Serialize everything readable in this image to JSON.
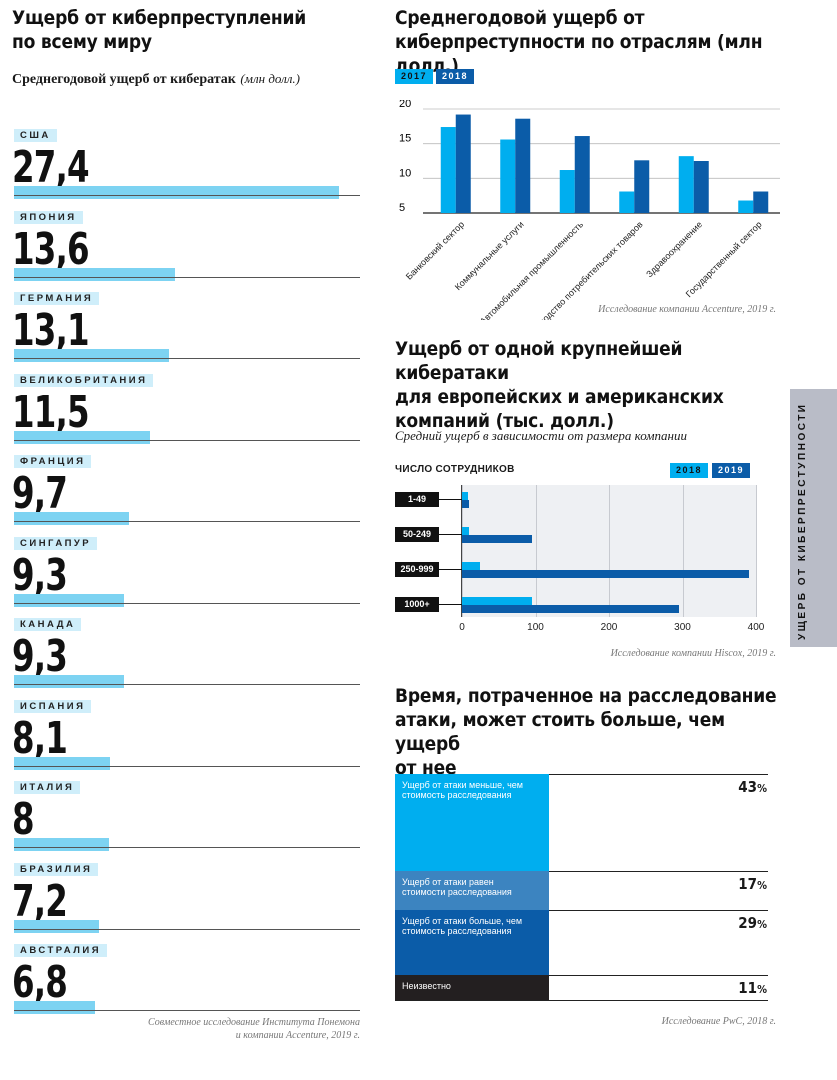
{
  "left_panel": {
    "title_line1": "Ущерб от киберпреступлений",
    "title_line2": "по всему миру",
    "subtitle_bold": "Среднегодовой ущерб от кибератак",
    "subtitle_unit": "(млн долл.)",
    "source_line1": "Совместное исследование Института Понемона",
    "source_line2": "и компании Accenture, 2019 г."
  },
  "top_right": {
    "title_line1": "Среднегодовой ущерб от",
    "title_line2": "киберпреступности по отраслям (млн долл.)",
    "source": "Исследование компании Accenture, 2019 г."
  },
  "middle_right": {
    "title_line1": "Ущерб от одной крупнейшей кибератаки",
    "title_line2": "для европейских и американских",
    "title_line3": "компаний (тыс. долл.)",
    "subtitle": "Средний ущерб в зависимости от размера компании",
    "axis_title": "ЧИСЛО СОТРУДНИКОВ",
    "source": "Исследование компании Hiscox, 2019 г."
  },
  "bottom_right": {
    "title_line1": "Время, потраченное на расследование",
    "title_line2": "атаки, может стоить больше, чем ущерб",
    "title_line3": "от нее",
    "source": "Исследование PwC, 2018 г."
  },
  "side_tab": {
    "label": "УЩЕРБ ОТ КИБЕРПРЕСТУПНОСТИ"
  },
  "colors": {
    "light_blue": "#00aeef",
    "dark_blue": "#0b5ca8",
    "pale_blue": "#7dd3f2",
    "black": "#231f20",
    "medium_blue": "#3c84c0"
  },
  "chart_data": [
    {
      "type": "bar",
      "orientation": "horizontal",
      "categories": [
        "США",
        "ЯПОНИЯ",
        "ГЕРМАНИЯ",
        "ВЕЛИКОБРИТАНИЯ",
        "ФРАНЦИЯ",
        "СИНГАПУР",
        "КАНАДА",
        "ИСПАНИЯ",
        "ИТАЛИЯ",
        "БРАЗИЛИЯ",
        "АВСТРАЛИЯ"
      ],
      "values": [
        27.4,
        13.6,
        13.1,
        11.5,
        9.7,
        9.3,
        9.3,
        8.1,
        8,
        7.2,
        6.8
      ],
      "value_labels": [
        "27,4",
        "13,6",
        "13,1",
        "11,5",
        "9,7",
        "9,3",
        "9,3",
        "8,1",
        "8",
        "7,2",
        "6,8"
      ],
      "xlim": [
        0,
        28
      ]
    },
    {
      "type": "bar",
      "categories": [
        "Банковский сектор",
        "Коммунальные услуги",
        "Автомобильная промышленность",
        "Производство потребительских товаров",
        "Здравоохранение",
        "Государственный сектор"
      ],
      "series": [
        {
          "name": "2017",
          "values": [
            17.4,
            15.6,
            11.2,
            8.1,
            13.2,
            6.8
          ]
        },
        {
          "name": "2018",
          "values": [
            19.2,
            18.6,
            16.1,
            12.6,
            12.5,
            8.1
          ]
        }
      ],
      "yticks": [
        "5",
        "10",
        "15",
        "20"
      ],
      "ylim": [
        5,
        20
      ]
    },
    {
      "type": "bar",
      "orientation": "horizontal",
      "categories": [
        "1-49",
        "50-249",
        "250-999",
        "1000+"
      ],
      "series": [
        {
          "name": "2018",
          "values": [
            8,
            10,
            25,
            95
          ]
        },
        {
          "name": "2019",
          "values": [
            10,
            95,
            390,
            295
          ]
        }
      ],
      "xticks": [
        "0",
        "100",
        "200",
        "300",
        "400"
      ],
      "xlim": [
        0,
        400
      ]
    },
    {
      "type": "bar",
      "stacked": true,
      "categories": [
        "Ущерб от атаки меньше, чем стоимость расследования",
        "Ущерб от атаки равен стоимости расследования",
        "Ущерб от атаки больше, чем стоимость расследования",
        "Неизвестно"
      ],
      "values": [
        43,
        17,
        29,
        11
      ],
      "value_labels": [
        "43",
        "17",
        "29",
        "11"
      ],
      "unit": "%"
    }
  ]
}
